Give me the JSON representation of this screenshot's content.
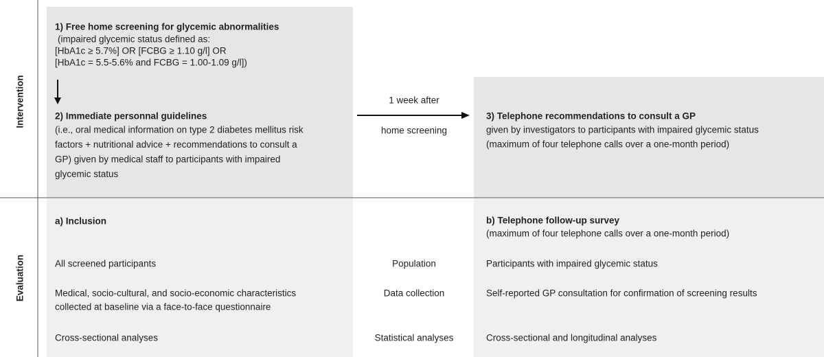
{
  "sections": {
    "intervention": "Intervention",
    "evaluation": "Evaluation"
  },
  "intervention": {
    "step1": {
      "title": "1) Free home screening for glycemic abnormalities",
      "lines": [
        "(impaired glycemic status defined as:",
        "[HbA1c ≥ 5.7%] OR  [FCBG ≥ 1.10 g/l] OR",
        "[HbA1c = 5.5-5.6% and FCBG = 1.00-1.09 g/l])"
      ]
    },
    "step2": {
      "title": "2) Immediate personnal guidelines",
      "lines": [
        "(i.e., oral medical information on type 2 diabetes mellitus risk",
        "factors + nutritional advice + recommendations to consult a",
        "GP) given by medical staff to participants with impaired",
        "glycemic status"
      ]
    },
    "transition": {
      "above": "1 week after",
      "below": "home screening"
    },
    "step3": {
      "title": "3) Telephone recommendations to consult a GP",
      "lines": [
        "given by investigators to participants with impaired glycemic status",
        "(maximum of four telephone calls over a one-month period)"
      ]
    }
  },
  "evaluation": {
    "left_title": "a) Inclusion",
    "right_title": "b) Telephone follow-up survey",
    "right_subtitle": "(maximum of four telephone calls over a one-month period)",
    "rows": [
      {
        "left": [
          "All screened participants"
        ],
        "middle": "Population",
        "right": [
          "Participants with impaired glycemic status"
        ]
      },
      {
        "left": [
          "Medical, socio-cultural, and socio-economic characteristics",
          "collected at baseline via a face-to-face questionnaire"
        ],
        "middle": "Data collection",
        "right": [
          "Self-reported GP consultation for confirmation of screening results"
        ]
      },
      {
        "left": [
          "Cross-sectional analyses"
        ],
        "middle": "Statistical analyses",
        "right": [
          "Cross-sectional and longitudinal analyses"
        ]
      }
    ]
  }
}
